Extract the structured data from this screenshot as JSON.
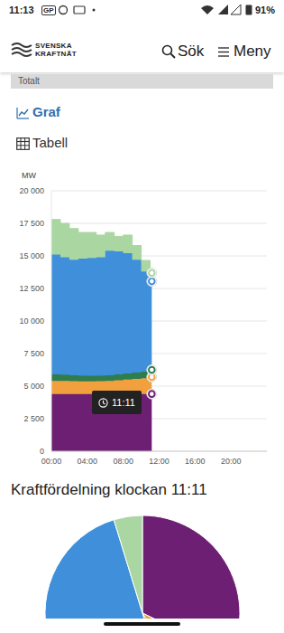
{
  "status_bar": {
    "time": "11:13",
    "icons": [
      "GP"
    ],
    "battery": "91%"
  },
  "header": {
    "logo": [
      "SVENSKA",
      "KRAFTNÄT"
    ],
    "search": "Sök",
    "menu": "Meny"
  },
  "section_tab": "Totalt",
  "views": [
    "Graf",
    "Tabell"
  ],
  "chart_data": [
    {
      "type": "area",
      "y_label": "MW",
      "stacked": true,
      "grid": true,
      "line_style": "step",
      "marker": "circle",
      "annotation": "11:11",
      "x": [
        0,
        1,
        2,
        3,
        4,
        5,
        6,
        7,
        8,
        9,
        10,
        11,
        11.18
      ],
      "xlim": [
        0,
        24
      ],
      "xticks": [
        {
          "value": 0,
          "label": "00:00"
        },
        {
          "value": 4,
          "label": "04:00"
        },
        {
          "value": 8,
          "label": "08:00"
        },
        {
          "value": 12,
          "label": "12:00"
        },
        {
          "value": 16,
          "label": "16:00"
        },
        {
          "value": 20,
          "label": "20:00"
        }
      ],
      "ylim": [
        0,
        20000
      ],
      "yticks": [
        0,
        {
          "value": 2500,
          "label": "2 500"
        },
        {
          "value": 5000,
          "label": "5 000"
        },
        {
          "value": 7500,
          "label": "7 500"
        },
        {
          "value": 10000,
          "label": "10 000"
        },
        {
          "value": 12500,
          "label": "12 500"
        },
        {
          "value": 15000,
          "label": "15 000"
        },
        {
          "value": 17500,
          "label": "17 500"
        },
        {
          "value": 20000,
          "label": "20 000"
        }
      ],
      "series": [
        {
          "color": "#6d1f73",
          "values": [
            4400,
            4400,
            4400,
            4400,
            4400,
            4400,
            4400,
            4400,
            4400,
            4400,
            4400,
            4400,
            4400
          ]
        },
        {
          "color": "#f2a03d",
          "values": [
            1000,
            1000,
            980,
            970,
            970,
            980,
            1000,
            1050,
            1100,
            1150,
            1200,
            1300,
            1300
          ]
        },
        {
          "color": "#2e7d4f",
          "values": [
            500,
            480,
            450,
            440,
            430,
            430,
            440,
            450,
            470,
            500,
            520,
            550,
            550
          ]
        },
        {
          "color": "#3f8fdb",
          "values": [
            9200,
            9020,
            8870,
            8990,
            9050,
            9090,
            9560,
            9450,
            9230,
            8650,
            7680,
            6800,
            6800
          ]
        },
        {
          "color": "#a9d6a1",
          "values": [
            2700,
            2600,
            2400,
            2000,
            1950,
            1700,
            1400,
            1150,
            1400,
            1100,
            850,
            650,
            650
          ]
        }
      ]
    },
    {
      "type": "pie",
      "title": "Kraftfördelning klockan 11:11",
      "values": [
        4400,
        1300,
        550,
        6800,
        650
      ],
      "colors": [
        "#6d1f73",
        "#f2a03d",
        "#2e7d4f",
        "#3f8fdb",
        "#a9d6a1"
      ]
    }
  ]
}
